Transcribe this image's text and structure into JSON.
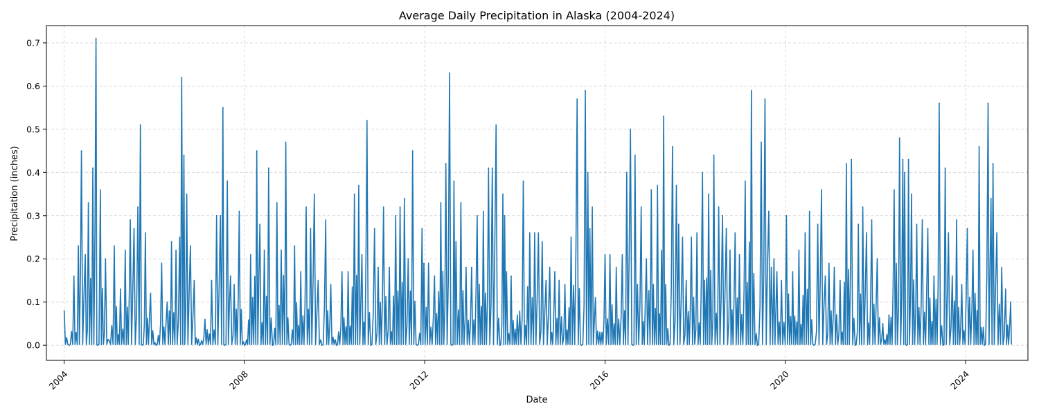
{
  "chart_data": {
    "type": "line",
    "title": "Average Daily Precipitation in Alaska (2004-2024)",
    "xlabel": "Date",
    "ylabel": "Precipitation (inches)",
    "xlim": [
      "2003-08-10",
      "2025-05-20"
    ],
    "ylim": [
      -0.035,
      0.74
    ],
    "x_ticks": [
      "2004",
      "2008",
      "2012",
      "2016",
      "2020",
      "2024"
    ],
    "y_ticks": [
      "0.0",
      "0.1",
      "0.2",
      "0.3",
      "0.4",
      "0.5",
      "0.6",
      "0.7"
    ],
    "grid": true,
    "series_color": "#1f77b4",
    "series": [
      {
        "x": [
          "2004-01-01",
          "2004-02-10",
          "2004-03-20",
          "2004-04-25",
          "2004-05-20",
          "2004-06-20",
          "2004-07-15",
          "2004-08-20",
          "2004-09-15",
          "2004-09-28",
          "2004-10-20",
          "2004-12-01",
          "2005-01-01",
          "2005-02-10",
          "2005-04-01",
          "2005-05-10",
          "2005-06-20",
          "2005-07-20",
          "2005-08-20",
          "2005-09-10",
          "2005-09-25",
          "2005-10-20",
          "2005-12-01",
          "2006-01-15",
          "2006-03-01",
          "2006-04-15",
          "2006-05-20",
          "2006-06-25",
          "2006-07-25",
          "2006-08-10",
          "2006-08-28",
          "2006-09-20",
          "2006-10-20",
          "2006-11-20",
          "2007-01-01",
          "2007-02-15",
          "2007-04-10",
          "2007-05-20",
          "2007-06-20",
          "2007-07-10",
          "2007-07-25",
          "2007-08-15",
          "2007-09-10",
          "2007-10-10",
          "2007-11-20",
          "2008-01-01",
          "2008-02-20",
          "2008-04-10",
          "2008-05-05",
          "2008-06-10",
          "2008-07-15",
          "2008-08-15",
          "2008-09-20",
          "2008-10-25",
          "2008-12-01",
          "2009-01-05",
          "2009-02-10",
          "2009-04-01",
          "2009-05-15",
          "2009-06-20",
          "2009-07-20",
          "2009-08-20",
          "2009-09-20",
          "2009-10-20",
          "2009-12-01",
          "2010-01-15",
          "2010-03-01",
          "2010-04-20",
          "2010-06-10",
          "2010-07-15",
          "2010-08-10",
          "2010-09-20",
          "2010-10-20",
          "2010-11-20",
          "2010-12-20",
          "2011-02-01",
          "2011-03-20",
          "2011-05-10",
          "2011-06-15",
          "2011-07-20",
          "2011-08-20",
          "2011-09-25",
          "2011-11-01",
          "2011-12-10",
          "2011-12-25",
          "2012-02-01",
          "2012-03-20",
          "2012-05-10",
          "2012-06-20",
          "2012-07-20",
          "2012-08-10",
          "2012-08-25",
          "2012-09-10",
          "2012-10-20",
          "2012-12-01",
          "2013-01-15",
          "2013-03-01",
          "2013-04-20",
          "2013-06-01",
          "2013-07-01",
          "2013-08-01",
          "2013-09-01",
          "2013-09-25",
          "2013-10-10",
          "2013-10-25",
          "2013-12-01",
          "2014-01-20",
          "2014-03-10",
          "2014-05-01",
          "2014-06-10",
          "2014-07-10",
          "2014-08-10",
          "2014-09-10",
          "2014-10-10",
          "2014-11-20",
          "2014-12-25",
          "2015-02-10",
          "2015-04-01",
          "2015-05-20",
          "2015-06-25",
          "2015-07-25",
          "2015-08-15",
          "2015-08-31",
          "2015-09-20",
          "2015-10-15",
          "2015-11-20",
          "2016-01-01",
          "2016-02-10",
          "2016-04-01",
          "2016-05-20",
          "2016-06-25",
          "2016-07-25",
          "2016-08-15",
          "2016-08-31",
          "2016-09-20",
          "2016-10-20",
          "2016-12-01",
          "2017-01-10",
          "2017-03-01",
          "2017-04-20",
          "2017-06-01",
          "2017-07-01",
          "2017-08-01",
          "2017-08-20",
          "2017-09-20",
          "2017-10-20",
          "2017-12-01",
          "2018-01-15",
          "2018-03-01",
          "2018-04-20",
          "2018-06-01",
          "2018-07-10",
          "2018-08-10",
          "2018-09-10",
          "2018-10-10",
          "2018-11-20",
          "2018-12-25",
          "2019-02-10",
          "2019-04-01",
          "2019-05-20",
          "2019-06-20",
          "2019-07-20",
          "2019-08-20",
          "2019-09-10",
          "2019-10-01",
          "2019-10-25",
          "2019-12-01",
          "2020-01-10",
          "2020-03-01",
          "2020-04-20",
          "2020-06-10",
          "2020-07-15",
          "2020-08-20",
          "2020-09-20",
          "2020-10-20",
          "2020-11-20",
          "2020-12-20",
          "2021-02-01",
          "2021-03-20",
          "2021-05-10",
          "2021-06-20",
          "2021-07-20",
          "2021-08-15",
          "2021-09-20",
          "2021-10-20",
          "2021-12-01",
          "2022-01-15",
          "2022-03-01",
          "2022-04-20",
          "2022-06-01",
          "2022-07-15",
          "2022-08-10",
          "2022-08-25",
          "2022-09-10",
          "2022-09-25",
          "2022-10-20",
          "2022-12-01",
          "2023-01-15",
          "2023-03-01",
          "2023-04-20",
          "2023-06-01",
          "2023-07-01",
          "2023-07-20",
          "2023-08-15",
          "2023-09-15",
          "2023-10-20",
          "2023-12-01",
          "2024-01-15",
          "2024-03-01",
          "2024-04-20",
          "2024-06-01",
          "2024-07-01",
          "2024-07-25",
          "2024-08-10",
          "2024-09-10",
          "2024-10-20",
          "2024-11-20",
          "2024-12-31"
        ],
        "y": [
          0.08,
          0.0,
          0.16,
          0.23,
          0.45,
          0.21,
          0.33,
          0.41,
          0.71,
          0.0,
          0.36,
          0.2,
          0.01,
          0.23,
          0.13,
          0.22,
          0.29,
          0.27,
          0.32,
          0.51,
          0.0,
          0.26,
          0.12,
          0.0,
          0.19,
          0.1,
          0.24,
          0.22,
          0.25,
          0.62,
          0.44,
          0.35,
          0.23,
          0.15,
          0.0,
          0.06,
          0.15,
          0.3,
          0.3,
          0.55,
          0.0,
          0.38,
          0.16,
          0.14,
          0.31,
          0.0,
          0.21,
          0.45,
          0.28,
          0.22,
          0.41,
          0.0,
          0.33,
          0.22,
          0.47,
          0.0,
          0.23,
          0.17,
          0.32,
          0.27,
          0.35,
          0.15,
          0.0,
          0.29,
          0.14,
          0.0,
          0.17,
          0.17,
          0.35,
          0.37,
          0.21,
          0.52,
          0.0,
          0.27,
          0.18,
          0.32,
          0.18,
          0.3,
          0.32,
          0.34,
          0.2,
          0.45,
          0.0,
          0.27,
          0.19,
          0.19,
          0.16,
          0.33,
          0.42,
          0.63,
          0.0,
          0.38,
          0.24,
          0.33,
          0.18,
          0.18,
          0.3,
          0.31,
          0.41,
          0.41,
          0.51,
          0.0,
          0.35,
          0.3,
          0.17,
          0.16,
          0.07,
          0.38,
          0.26,
          0.26,
          0.26,
          0.24,
          0.15,
          0.18,
          0.17,
          0.15,
          0.14,
          0.25,
          0.57,
          0.0,
          0.59,
          0.4,
          0.27,
          0.32,
          0.11,
          0.03,
          0.21,
          0.21,
          0.18,
          0.21,
          0.4,
          0.5,
          0.0,
          0.44,
          0.14,
          0.32,
          0.2,
          0.36,
          0.37,
          0.53,
          0.0,
          0.46,
          0.37,
          0.28,
          0.25,
          0.15,
          0.25,
          0.26,
          0.4,
          0.35,
          0.44,
          0.32,
          0.3,
          0.27,
          0.22,
          0.26,
          0.21,
          0.38,
          0.59,
          0.0,
          0.47,
          0.57,
          0.31,
          0.18,
          0.2,
          0.17,
          0.15,
          0.3,
          0.17,
          0.22,
          0.26,
          0.31,
          0.0,
          0.28,
          0.36,
          0.16,
          0.19,
          0.18,
          0.15,
          0.42,
          0.43,
          0.0,
          0.28,
          0.32,
          0.26,
          0.29,
          0.2,
          0.05,
          0.07,
          0.36,
          0.48,
          0.43,
          0.4,
          0.0,
          0.43,
          0.35,
          0.28,
          0.29,
          0.27,
          0.16,
          0.56,
          0.0,
          0.41,
          0.26,
          0.16,
          0.29,
          0.14,
          0.27,
          0.22,
          0.46,
          0.0,
          0.56,
          0.34,
          0.42,
          0.26,
          0.18,
          0.13,
          0.1
        ]
      }
    ]
  }
}
